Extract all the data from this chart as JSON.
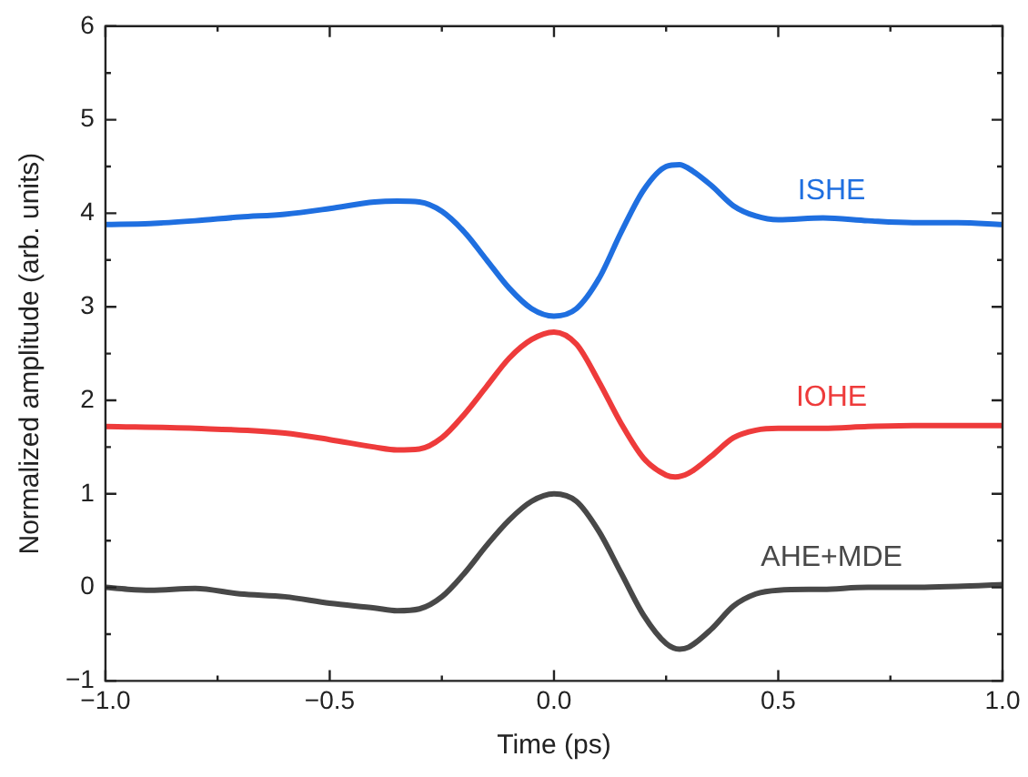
{
  "chart_data": {
    "type": "line",
    "xlabel": "Time (ps)",
    "ylabel": "Normalized amplitude (arb. units)",
    "xlim": [
      -1.0,
      1.0
    ],
    "xticks": [
      {
        "value": -1,
        "label": "−1.0"
      },
      {
        "value": -0.5,
        "label": "−0.5"
      },
      {
        "value": 0,
        "label": "0.0"
      },
      {
        "value": 0.5,
        "label": "0.5"
      },
      {
        "value": 1,
        "label": "1.0"
      }
    ],
    "ylim": [
      -1,
      6
    ],
    "yticks": [
      {
        "value": -1,
        "label": "−1"
      },
      0,
      1,
      2,
      3,
      4,
      5,
      6
    ],
    "legend": false,
    "marker": "none",
    "line_style": "solid",
    "series": [
      {
        "name": "ISHE",
        "color": "#1f6fe0",
        "x": [
          -1,
          -0.9,
          -0.8,
          -0.7,
          -0.6,
          -0.5,
          -0.4,
          -0.35,
          -0.3,
          -0.25,
          -0.2,
          -0.15,
          -0.1,
          -0.05,
          0,
          0.05,
          0.1,
          0.15,
          0.2,
          0.25,
          0.28,
          0.3,
          0.35,
          0.4,
          0.45,
          0.5,
          0.6,
          0.7,
          0.8,
          0.9,
          1
        ],
        "values": [
          3.88,
          3.89,
          3.92,
          3.96,
          3.99,
          4.05,
          4.12,
          4.13,
          4.12,
          4.02,
          3.8,
          3.5,
          3.2,
          2.98,
          2.9,
          2.98,
          3.3,
          3.8,
          4.25,
          4.5,
          4.52,
          4.48,
          4.3,
          4.08,
          3.97,
          3.93,
          3.95,
          3.92,
          3.9,
          3.9,
          3.88
        ]
      },
      {
        "name": "IOHE",
        "color": "#ee3b3b",
        "x": [
          -1,
          -0.8,
          -0.6,
          -0.5,
          -0.4,
          -0.35,
          -0.3,
          -0.25,
          -0.2,
          -0.15,
          -0.1,
          -0.05,
          0,
          0.05,
          0.1,
          0.15,
          0.2,
          0.25,
          0.27,
          0.3,
          0.35,
          0.4,
          0.45,
          0.5,
          0.6,
          0.7,
          0.8,
          1
        ],
        "values": [
          1.72,
          1.7,
          1.65,
          1.58,
          1.5,
          1.47,
          1.48,
          1.6,
          1.85,
          2.15,
          2.45,
          2.65,
          2.73,
          2.6,
          2.2,
          1.75,
          1.38,
          1.2,
          1.18,
          1.22,
          1.4,
          1.6,
          1.68,
          1.7,
          1.7,
          1.72,
          1.73,
          1.73
        ]
      },
      {
        "name": "AHE+MDE",
        "color": "#484848",
        "x": [
          -1,
          -0.95,
          -0.9,
          -0.8,
          -0.7,
          -0.6,
          -0.5,
          -0.4,
          -0.35,
          -0.3,
          -0.25,
          -0.2,
          -0.15,
          -0.1,
          -0.05,
          0,
          0.05,
          0.1,
          0.15,
          0.2,
          0.25,
          0.28,
          0.3,
          0.35,
          0.4,
          0.45,
          0.5,
          0.6,
          0.7,
          0.8,
          0.9,
          1
        ],
        "values": [
          0,
          -0.02,
          -0.03,
          -0.01,
          -0.07,
          -0.1,
          -0.17,
          -0.22,
          -0.25,
          -0.23,
          -0.1,
          0.15,
          0.45,
          0.72,
          0.92,
          1,
          0.92,
          0.6,
          0.15,
          -0.3,
          -0.6,
          -0.66,
          -0.64,
          -0.45,
          -0.2,
          -0.07,
          -0.03,
          -0.02,
          0,
          0,
          0.01,
          0.03
        ]
      }
    ]
  }
}
